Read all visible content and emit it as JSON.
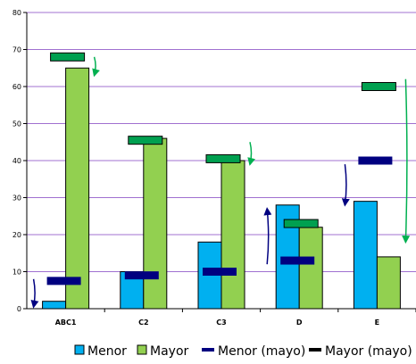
{
  "chart_data": {
    "type": "bar",
    "categories": [
      "ABC1",
      "C2",
      "C3",
      "D",
      "E"
    ],
    "series": [
      {
        "name": "Menor",
        "kind": "bar",
        "color": "#00b0f0",
        "values": [
          2,
          10,
          18,
          28,
          29
        ]
      },
      {
        "name": "Mayor",
        "kind": "bar",
        "color": "#92d050",
        "values": [
          65,
          46,
          40,
          22,
          14
        ]
      },
      {
        "name": "Menor (mayo)",
        "kind": "marker",
        "color": "#000080",
        "values": [
          7.5,
          9,
          10,
          13,
          40
        ]
      },
      {
        "name": "Mayor (mayo)",
        "kind": "marker",
        "color": "#00a050",
        "values": [
          68,
          45.5,
          40.5,
          23,
          60
        ]
      }
    ],
    "yticks": [
      0,
      10,
      20,
      30,
      40,
      50,
      60,
      70,
      80
    ],
    "ytick_labels": [
      "0",
      "10",
      "20",
      "30",
      "40",
      "50",
      "60",
      "70",
      "80"
    ],
    "ylim": [
      0,
      80
    ],
    "gridlines": true,
    "gridline_color": "#a070d0",
    "legend_position": "bottom",
    "arrows": [
      {
        "category": 0,
        "color": "#000080",
        "from": 8,
        "to": 0.5,
        "side": "left"
      },
      {
        "category": 0,
        "color": "#00b050",
        "from": 68,
        "to": 63,
        "side": "right"
      },
      {
        "category": 2,
        "color": "#00b050",
        "from": 45,
        "to": 39,
        "side": "right"
      },
      {
        "category": 3,
        "color": "#000080",
        "from": 12,
        "to": 27,
        "side": "left"
      },
      {
        "category": 4,
        "color": "#000080",
        "from": 39,
        "to": 28,
        "side": "left"
      },
      {
        "category": 4,
        "color": "#00b050",
        "from": 62,
        "to": 18,
        "side": "right"
      }
    ]
  }
}
